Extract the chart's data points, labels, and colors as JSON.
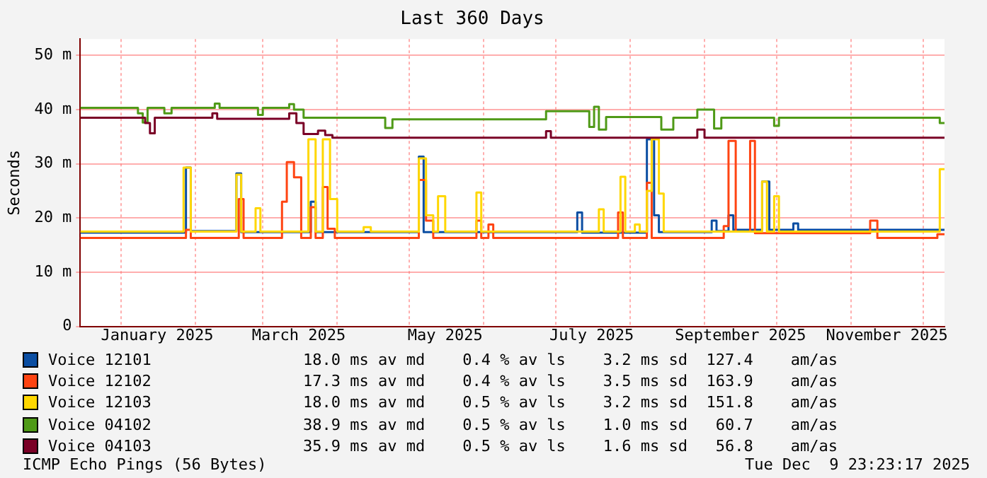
{
  "chart_data": {
    "type": "step",
    "title": "Last 360 Days",
    "ylabel": "Seconds",
    "xlim": [
      "2024-12-14T23:23",
      "2025-12-09T23:23"
    ],
    "xticks": [
      {
        "value": "2025-01-01",
        "label": null
      },
      {
        "value": "2025-01-16",
        "label": "January 2025"
      },
      {
        "value": "2025-02-01",
        "label": null
      },
      {
        "value": "2025-03-01",
        "label": null
      },
      {
        "value": "2025-03-16",
        "label": "March 2025"
      },
      {
        "value": "2025-04-01",
        "label": null
      },
      {
        "value": "2025-05-01",
        "label": null
      },
      {
        "value": "2025-05-16",
        "label": "May 2025"
      },
      {
        "value": "2025-06-01",
        "label": null
      },
      {
        "value": "2025-07-01",
        "label": null
      },
      {
        "value": "2025-07-16",
        "label": "July 2025"
      },
      {
        "value": "2025-08-01",
        "label": null
      },
      {
        "value": "2025-09-01",
        "label": null
      },
      {
        "value": "2025-09-16",
        "label": "September 2025"
      },
      {
        "value": "2025-10-01",
        "label": null
      },
      {
        "value": "2025-11-01",
        "label": null
      },
      {
        "value": "2025-11-16",
        "label": "November 2025"
      },
      {
        "value": "2025-12-01",
        "label": null
      }
    ],
    "ylim": [
      0,
      53
    ],
    "yticks": [
      0,
      {
        "value": 10,
        "label": "10 m"
      },
      {
        "value": 20,
        "label": "20 m"
      },
      {
        "value": 30,
        "label": "30 m"
      },
      {
        "value": 40,
        "label": "40 m"
      },
      {
        "value": 50,
        "label": "50 m"
      }
    ],
    "grid": true,
    "legend": "bottom",
    "marker": "none",
    "line_style": "solid",
    "series": [
      {
        "name": "Voice 12101",
        "color": "#0b4ea2",
        "x": [
          "2024-12-15",
          "2025-01-28",
          "2025-01-30",
          "2025-02-18",
          "2025-02-20",
          "2025-03-21",
          "2025-03-23",
          "2025-05-05",
          "2025-05-07",
          "2025-07-10",
          "2025-07-12",
          "2025-08-08",
          "2025-08-11",
          "2025-08-13",
          "2025-09-04",
          "2025-09-06",
          "2025-09-11",
          "2025-09-13",
          "2025-09-25",
          "2025-09-28",
          "2025-10-08",
          "2025-10-10",
          "2025-12-07",
          "2025-12-09T23:00"
        ],
        "values": [
          17.3,
          29.3,
          17.6,
          28.2,
          17.4,
          23,
          17.4,
          31.3,
          17.4,
          21,
          17.3,
          34.5,
          20.5,
          17.4,
          19.5,
          17.6,
          20.5,
          17.8,
          26.7,
          17.8,
          19,
          17.8,
          17.8,
          17.8
        ]
      },
      {
        "name": "Voice 12102",
        "color": "#ff4412",
        "x": [
          "2024-12-15",
          "2025-01-28",
          "2025-01-30",
          "2025-02-19",
          "2025-02-21",
          "2025-03-09",
          "2025-03-11",
          "2025-03-14",
          "2025-03-17",
          "2025-03-21",
          "2025-03-23",
          "2025-03-26",
          "2025-03-28",
          "2025-03-31",
          "2025-05-05",
          "2025-05-08",
          "2025-05-11",
          "2025-05-29",
          "2025-05-31",
          "2025-06-03",
          "2025-06-05",
          "2025-07-27",
          "2025-07-29",
          "2025-08-08",
          "2025-08-10",
          "2025-09-09",
          "2025-09-11",
          "2025-09-14",
          "2025-09-20",
          "2025-09-22",
          "2025-11-09",
          "2025-11-12",
          "2025-12-07",
          "2025-12-09T23:00"
        ],
        "values": [
          16.3,
          17.8,
          16.3,
          23.5,
          16.3,
          23,
          30.3,
          27.5,
          16.3,
          22,
          16.3,
          25.7,
          18,
          16.3,
          27,
          19.5,
          16.3,
          19.5,
          16.3,
          18.8,
          16.3,
          21,
          16.3,
          26.5,
          16.3,
          18.5,
          34.2,
          17.5,
          34.2,
          17.2,
          19.5,
          16.3,
          17,
          17
        ]
      },
      {
        "name": "Voice 12103",
        "color": "#ffd700",
        "x": [
          "2024-12-15",
          "2025-01-27",
          "2025-01-30",
          "2025-02-18",
          "2025-02-20",
          "2025-02-26",
          "2025-02-28",
          "2025-03-20",
          "2025-03-23",
          "2025-03-26",
          "2025-03-29",
          "2025-04-01",
          "2025-04-12",
          "2025-04-15",
          "2025-05-05",
          "2025-05-08",
          "2025-05-11",
          "2025-05-13",
          "2025-05-16",
          "2025-05-29",
          "2025-05-31",
          "2025-07-19",
          "2025-07-21",
          "2025-07-28",
          "2025-07-30",
          "2025-08-03",
          "2025-08-05",
          "2025-08-08",
          "2025-08-10",
          "2025-08-13",
          "2025-08-15",
          "2025-09-25",
          "2025-09-27",
          "2025-09-30",
          "2025-10-02",
          "2025-12-08",
          "2025-12-09T23:00"
        ],
        "values": [
          17.5,
          29.3,
          17.5,
          28,
          17.5,
          21.8,
          17.5,
          34.5,
          17.5,
          34.5,
          23.5,
          17.5,
          18.3,
          17.5,
          31,
          20.5,
          17.5,
          24,
          17.5,
          24.7,
          17.5,
          21.6,
          17.5,
          27.6,
          17.5,
          18.8,
          17.5,
          25,
          34.5,
          24.5,
          17.5,
          26.7,
          17.5,
          24,
          17.5,
          29,
          29
        ]
      },
      {
        "name": "Voice 04102",
        "color": "#4f9a17",
        "x": [
          "2024-12-15",
          "2025-01-08",
          "2025-01-10",
          "2025-01-12",
          "2025-01-19",
          "2025-01-22",
          "2025-02-09",
          "2025-02-11",
          "2025-02-27",
          "2025-03-01",
          "2025-03-12",
          "2025-03-14",
          "2025-03-18",
          "2025-04-21",
          "2025-04-24",
          "2025-06-27",
          "2025-07-15",
          "2025-07-17",
          "2025-07-19",
          "2025-07-22",
          "2025-08-14",
          "2025-08-19",
          "2025-08-29",
          "2025-09-05",
          "2025-09-08",
          "2025-09-30",
          "2025-10-02",
          "2025-12-08",
          "2025-12-09T23:00"
        ],
        "values": [
          40.3,
          39.3,
          37.6,
          40.3,
          39.3,
          40.3,
          41.1,
          40.3,
          39,
          40.3,
          41,
          40,
          38.5,
          36.6,
          38.2,
          39.7,
          36.8,
          40.5,
          36.3,
          38.6,
          36.3,
          38.5,
          40,
          36.5,
          38.5,
          37,
          38.5,
          37.5,
          37.5
        ]
      },
      {
        "name": "Voice 04103",
        "color": "#7a0026",
        "x": [
          "2024-12-15",
          "2025-01-11",
          "2025-01-13",
          "2025-01-15",
          "2025-02-08",
          "2025-02-10",
          "2025-03-12",
          "2025-03-15",
          "2025-03-18",
          "2025-03-24",
          "2025-03-27",
          "2025-03-30",
          "2025-06-27",
          "2025-06-29",
          "2025-08-29",
          "2025-09-01",
          "2025-12-09T23:00"
        ],
        "values": [
          38.5,
          37.5,
          35.6,
          38.5,
          39.3,
          38.3,
          39.3,
          37.5,
          35.5,
          36.1,
          35.3,
          34.8,
          36,
          34.8,
          36.3,
          34.8,
          34.8
        ]
      }
    ],
    "annotations": [
      "18.0 ms av md    0.4 % av ls    3.2 ms sd  127.4    am/as",
      "17.3 ms av md    0.4 % av ls    3.5 ms sd  163.9    am/as",
      "18.0 ms av md    0.5 % av ls    3.2 ms sd  151.8    am/as",
      "38.9 ms av md    0.5 % av ls    1.0 ms sd   60.7    am/as",
      "35.9 ms av md    0.5 % av ls    1.6 ms sd   56.8    am/as",
      "ICMP Echo Pings (56 Bytes)",
      "Tue Dec  9 23:23:17 2025"
    ]
  }
}
